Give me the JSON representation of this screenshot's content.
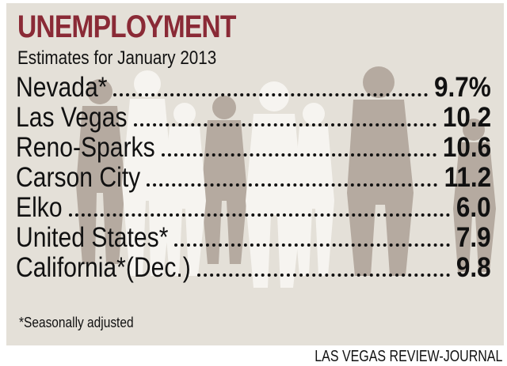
{
  "chart_data": {
    "type": "table",
    "title": "UNEMPLOYMENT",
    "subtitle": "Estimates for January 2013",
    "rows": [
      {
        "label": "Nevada*",
        "value": "9.7%"
      },
      {
        "label": "Las Vegas",
        "value": "10.2"
      },
      {
        "label": "Reno-Sparks",
        "value": "10.6"
      },
      {
        "label": "Carson City",
        "value": "11.2"
      },
      {
        "label": "Elko",
        "value": "6.0"
      },
      {
        "label": "United States*",
        "value": "7.9"
      },
      {
        "label": "California*(Dec.)",
        "value": "9.8"
      }
    ],
    "footnote": "*Seasonally adjusted"
  },
  "credit": "LAS VEGAS REVIEW-JOURNAL",
  "colors": {
    "title": "#8a2a36",
    "background": "#e4e0d8",
    "silhouette_dark": "#b5aaa0",
    "silhouette_light": "#f6f4f0"
  }
}
